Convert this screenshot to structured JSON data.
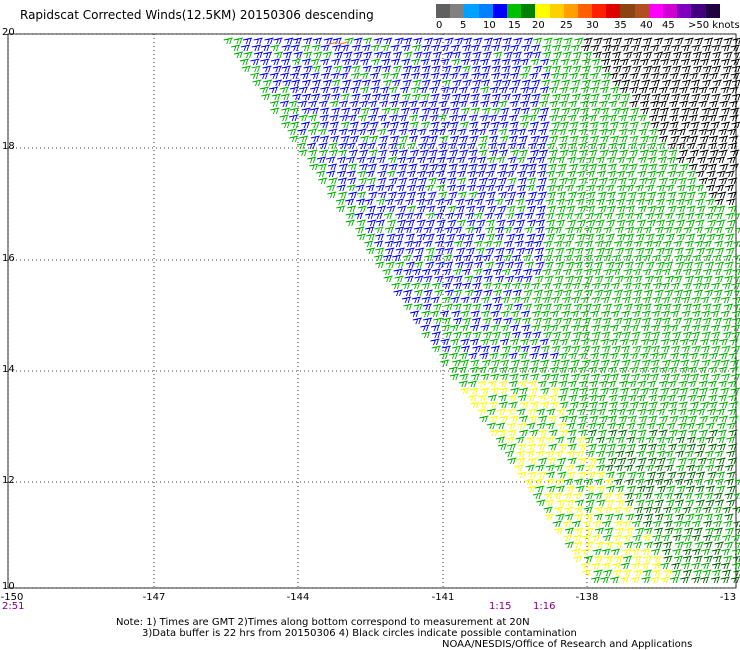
{
  "title": "Rapidscat Corrected Winds(12.5KM) 20150306 descending",
  "legend": {
    "labels": [
      "0",
      "5",
      "10",
      "15",
      "20",
      "25",
      "30",
      "35",
      "40",
      "45",
      ">50 knots"
    ],
    "colors": [
      "#606060",
      "#808080",
      "#00a0ff",
      "#0080ff",
      "#0000ff",
      "#00c000",
      "#008000",
      "#ffff00",
      "#ffd000",
      "#ffa000",
      "#ff6000",
      "#ff2000",
      "#e00000",
      "#8b4513",
      "#b05020",
      "#ff00ff",
      "#d000d0",
      "#8000c0",
      "#400080",
      "#200040"
    ]
  },
  "y_axis": {
    "ticks": [
      "20",
      "18",
      "16",
      "14",
      "12",
      "10"
    ]
  },
  "x_axis": {
    "ticks": [
      "-150",
      "-147",
      "-144",
      "-141",
      "-138",
      "-13"
    ]
  },
  "times": {
    "left": "2:51",
    "mid1": "1:15",
    "mid2": "1:16"
  },
  "notes": {
    "line1": "Note: 1) Times are GMT 2)Times along bottom correspond to measurement at 20N",
    "line2": "3)Data buffer is 22 hrs from 20150306 4) Black circles indicate possible contamination",
    "line3": "NOAA/NESDIS/Office of Research and Applications"
  },
  "colors": {
    "blue": "#0000ff",
    "green": "#00b000",
    "dark_green": "#006400",
    "yellow": "#ffff00",
    "black": "#000000",
    "orange": "#ff8000"
  }
}
